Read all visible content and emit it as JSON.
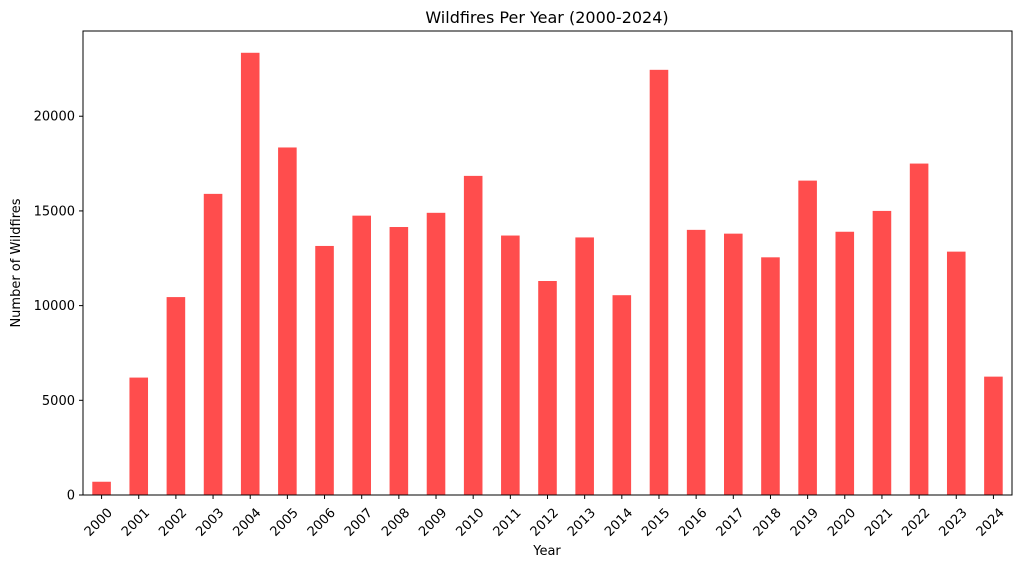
{
  "chart_data": {
    "type": "bar",
    "title": "Wildfires Per Year (2000-2024)",
    "xlabel": "Year",
    "ylabel": "Number of Wildfires",
    "categories": [
      "2000",
      "2001",
      "2002",
      "2003",
      "2004",
      "2005",
      "2006",
      "2007",
      "2008",
      "2009",
      "2010",
      "2011",
      "2012",
      "2013",
      "2014",
      "2015",
      "2016",
      "2017",
      "2018",
      "2019",
      "2020",
      "2021",
      "2022",
      "2023",
      "2024"
    ],
    "values": [
      700,
      6200,
      10450,
      15900,
      23350,
      18350,
      13150,
      14750,
      14150,
      14900,
      16850,
      13700,
      11300,
      13600,
      10550,
      22450,
      14000,
      13800,
      12550,
      16600,
      13900,
      15000,
      17500,
      12850,
      6250
    ],
    "ylim": [
      0,
      24500
    ],
    "yticks": [
      0,
      5000,
      10000,
      15000,
      20000
    ],
    "bar_color": "#ff4d4d",
    "grid": false,
    "legend": "none"
  }
}
